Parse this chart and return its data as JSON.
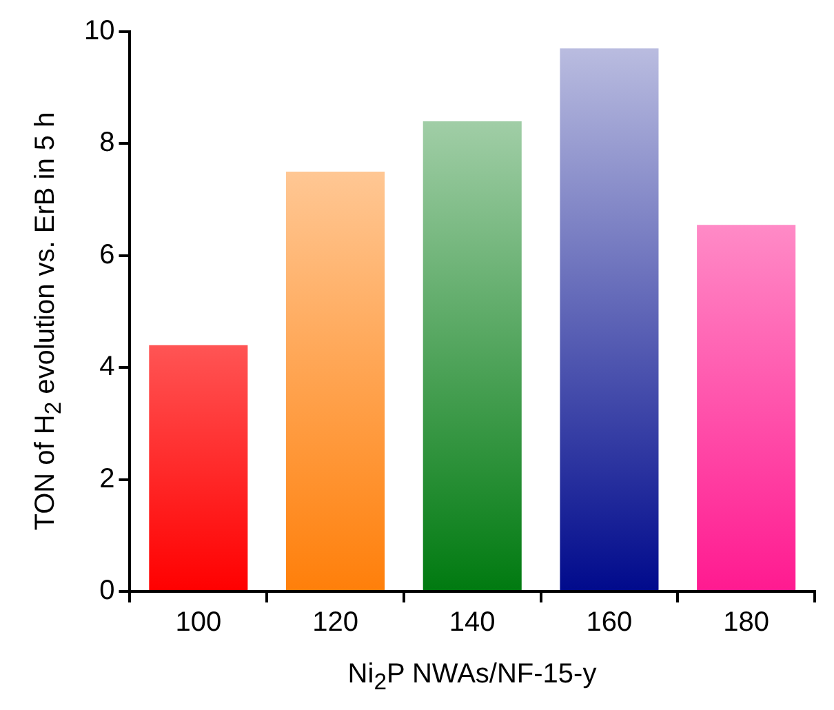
{
  "chart_data": {
    "type": "bar",
    "xlabel": "Ni$_{2}$P NWAs/NF-15-y",
    "ylabel": "TON of H$_{2}$ evolution vs. ErB in 5 h",
    "categories": [
      "100",
      "120",
      "140",
      "160",
      "180"
    ],
    "values": [
      4.4,
      7.5,
      8.4,
      9.7,
      6.55
    ],
    "colors": [
      "#ff0000",
      "#ff7f0a",
      "#007a10",
      "#000a8c",
      "#ff1a90"
    ],
    "ylim": [
      0,
      10
    ],
    "yticks": [
      0,
      2,
      4,
      6,
      8,
      10
    ]
  }
}
